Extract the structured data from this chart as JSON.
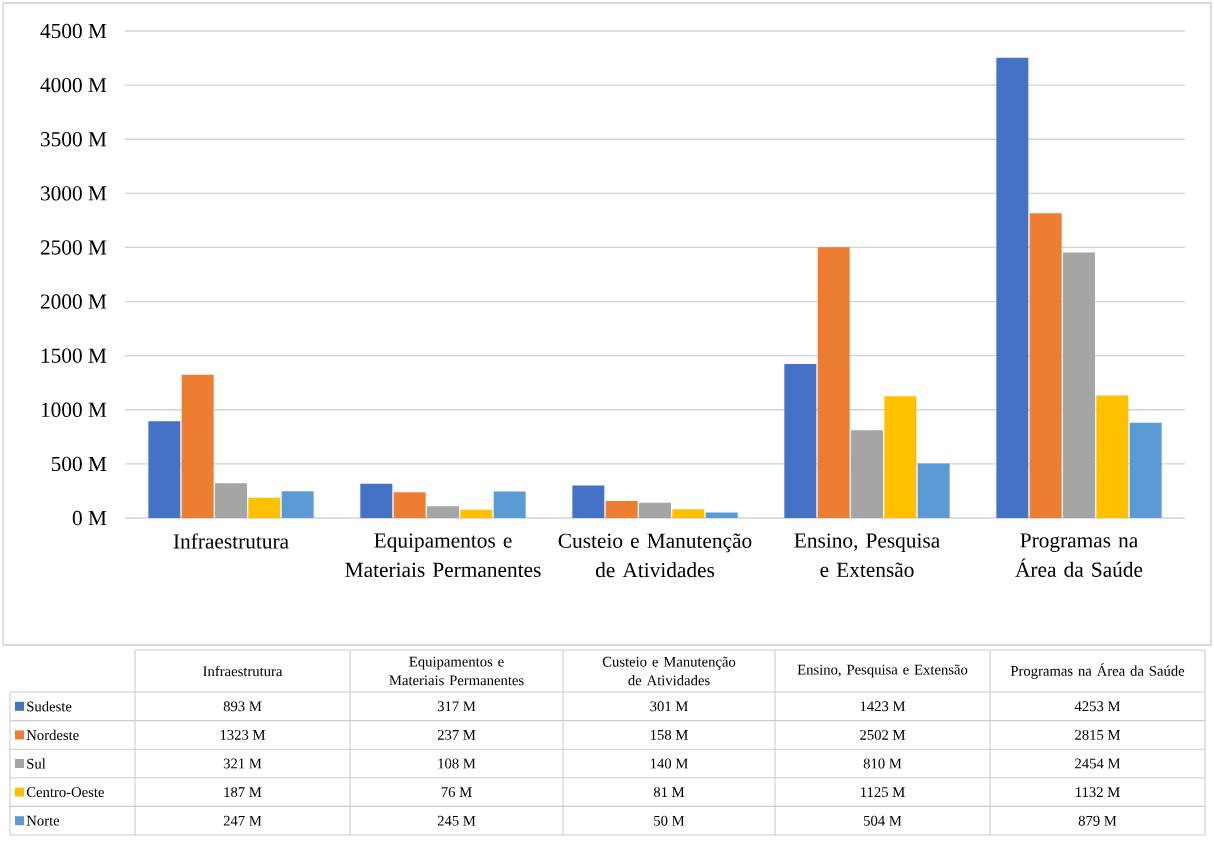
{
  "chart_data": {
    "type": "bar",
    "categories": [
      "Infraestrutura",
      "Equipamentos e Materiais Permanentes",
      "Custeio e Manutenção de Atividades",
      "Ensino, Pesquisa e Extensão",
      "Programas na Área da Saúde"
    ],
    "series": [
      {
        "name": "Sudeste",
        "color": "#4472c4",
        "values": [
          893,
          317,
          301,
          1423,
          4253
        ],
        "value_labels": [
          "893 M",
          "317 M",
          "301 M",
          "1423 M",
          "4253 M"
        ]
      },
      {
        "name": "Nordeste",
        "color": "#ed7d31",
        "values": [
          1323,
          237,
          158,
          2502,
          2815
        ],
        "value_labels": [
          "1323 M",
          "237 M",
          "158 M",
          "2502 M",
          "2815 M"
        ]
      },
      {
        "name": "Sul",
        "color": "#a5a5a5",
        "values": [
          321,
          108,
          140,
          810,
          2454
        ],
        "value_labels": [
          "321 M",
          "108 M",
          "140 M",
          "810 M",
          "2454 M"
        ]
      },
      {
        "name": "Centro-Oeste",
        "color": "#ffc000",
        "values": [
          187,
          76,
          81,
          1125,
          1132
        ],
        "value_labels": [
          "187 M",
          "76 M",
          "81 M",
          "1125 M",
          "1132 M"
        ]
      },
      {
        "name": "Norte",
        "color": "#5b9bd5",
        "values": [
          247,
          245,
          50,
          504,
          879
        ],
        "value_labels": [
          "247 M",
          "245 M",
          "50 M",
          "504 M",
          "879 M"
        ]
      }
    ],
    "ylim": [
      0,
      4500
    ],
    "yticks": [
      {
        "value": 0,
        "label": "0 M"
      },
      {
        "value": 500,
        "label": "500 M"
      },
      {
        "value": 1000,
        "label": "1000 M"
      },
      {
        "value": 1500,
        "label": "1500 M"
      },
      {
        "value": 2000,
        "label": "2000 M"
      },
      {
        "value": 2500,
        "label": "2500 M"
      },
      {
        "value": 3000,
        "label": "3000 M"
      },
      {
        "value": 3500,
        "label": "3500 M"
      },
      {
        "value": 4000,
        "label": "4000 M"
      },
      {
        "value": 4500,
        "label": "4500 M"
      }
    ],
    "grid": "y",
    "legend": "bottom"
  }
}
